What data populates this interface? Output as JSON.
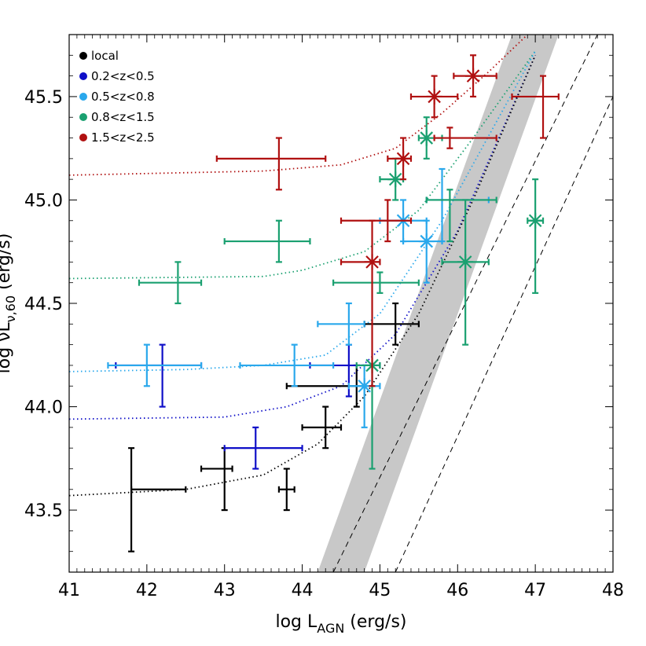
{
  "chart_data": {
    "type": "scatter",
    "xlabel": {
      "main": "log L",
      "sub": "AGN",
      "unit": " (erg/s)"
    },
    "ylabel": {
      "main": "log νL",
      "sub": "ν,60",
      "unit": " (erg/s)"
    },
    "xlim": [
      41,
      48
    ],
    "ylim": [
      43.2,
      45.8
    ],
    "x_ticks": [
      "41",
      "42",
      "43",
      "44",
      "45",
      "46",
      "47",
      "48"
    ],
    "x_tick_values": [
      41,
      42,
      43,
      44,
      45,
      46,
      47,
      48
    ],
    "y_ticks": [
      "43.5",
      "44.0",
      "44.5",
      "45.0",
      "45.5"
    ],
    "y_tick_values": [
      43.5,
      44.0,
      44.5,
      45.0,
      45.5
    ],
    "grid": false,
    "legend_position": "top-left",
    "series": [
      {
        "name": "local",
        "color": "#000000",
        "points": [
          {
            "x": 41.8,
            "y": 43.6,
            "xlo": 41.8,
            "xhi": 42.5,
            "ylo": 43.3,
            "yhi": 43.8,
            "marker": "plus"
          },
          {
            "x": 43.0,
            "y": 43.7,
            "xlo": 42.7,
            "xhi": 43.1,
            "ylo": 43.5,
            "yhi": 43.8,
            "marker": "plus"
          },
          {
            "x": 43.8,
            "y": 43.6,
            "xlo": 43.7,
            "xhi": 43.9,
            "ylo": 43.5,
            "yhi": 43.7,
            "marker": "plus"
          },
          {
            "x": 44.3,
            "y": 43.9,
            "xlo": 44.0,
            "xhi": 44.5,
            "ylo": 43.8,
            "yhi": 44.0,
            "marker": "plus"
          },
          {
            "x": 44.7,
            "y": 44.1,
            "xlo": 43.8,
            "xhi": 44.8,
            "ylo": 44.0,
            "yhi": 44.2,
            "marker": "plus"
          },
          {
            "x": 45.2,
            "y": 44.4,
            "xlo": 44.8,
            "xhi": 45.5,
            "ylo": 44.3,
            "yhi": 44.5,
            "marker": "plus"
          }
        ]
      },
      {
        "name": "0.2<z<0.5",
        "color": "#0f0fc8",
        "points": [
          {
            "x": 42.2,
            "y": 44.2,
            "xlo": 41.6,
            "xhi": 42.7,
            "ylo": 44.0,
            "yhi": 44.3,
            "marker": "plus"
          },
          {
            "x": 43.4,
            "y": 43.8,
            "xlo": 43.0,
            "xhi": 44.0,
            "ylo": 43.7,
            "yhi": 43.9,
            "marker": "plus"
          },
          {
            "x": 44.6,
            "y": 44.2,
            "xlo": 44.1,
            "xhi": 45.0,
            "ylo": 44.05,
            "yhi": 44.3,
            "marker": "plus"
          }
        ]
      },
      {
        "name": "0.5<z<0.8",
        "color": "#2aa8ec",
        "points": [
          {
            "x": 42.0,
            "y": 44.2,
            "xlo": 41.5,
            "xhi": 42.7,
            "ylo": 44.1,
            "yhi": 44.3,
            "marker": "plus"
          },
          {
            "x": 43.9,
            "y": 44.2,
            "xlo": 43.2,
            "xhi": 44.4,
            "ylo": 44.1,
            "yhi": 44.3,
            "marker": "plus"
          },
          {
            "x": 44.6,
            "y": 44.4,
            "xlo": 44.2,
            "xhi": 44.8,
            "ylo": 44.3,
            "yhi": 44.5,
            "marker": "plus"
          },
          {
            "x": 44.8,
            "y": 44.1,
            "xlo": 44.6,
            "xhi": 45.0,
            "ylo": 43.9,
            "yhi": 44.2,
            "marker": "star"
          },
          {
            "x": 45.3,
            "y": 44.9,
            "xlo": 45.0,
            "xhi": 45.6,
            "ylo": 44.8,
            "yhi": 45.0,
            "marker": "star"
          },
          {
            "x": 45.6,
            "y": 44.8,
            "xlo": 45.3,
            "xhi": 45.8,
            "ylo": 44.6,
            "yhi": 44.9,
            "marker": "star"
          },
          {
            "x": 45.8,
            "y": 45.0,
            "xlo": 45.6,
            "xhi": 46.4,
            "ylo": 44.8,
            "yhi": 45.15,
            "marker": "plus"
          }
        ]
      },
      {
        "name": "0.8<z<1.5",
        "color": "#1aa070",
        "points": [
          {
            "x": 42.4,
            "y": 44.6,
            "xlo": 41.9,
            "xhi": 42.7,
            "ylo": 44.5,
            "yhi": 44.7,
            "marker": "plus"
          },
          {
            "x": 43.7,
            "y": 44.8,
            "xlo": 43.0,
            "xhi": 44.1,
            "ylo": 44.7,
            "yhi": 44.9,
            "marker": "plus"
          },
          {
            "x": 45.0,
            "y": 44.6,
            "xlo": 44.4,
            "xhi": 45.5,
            "ylo": 44.55,
            "yhi": 44.65,
            "marker": "plus"
          },
          {
            "x": 44.9,
            "y": 44.2,
            "xlo": 44.7,
            "xhi": 45.0,
            "ylo": 43.7,
            "yhi": 44.2,
            "marker": "star"
          },
          {
            "x": 45.2,
            "y": 45.1,
            "xlo": 45.0,
            "xhi": 45.3,
            "ylo": 45.0,
            "yhi": 45.2,
            "marker": "star"
          },
          {
            "x": 45.6,
            "y": 45.3,
            "xlo": 45.5,
            "xhi": 45.8,
            "ylo": 45.2,
            "yhi": 45.4,
            "marker": "star"
          },
          {
            "x": 45.9,
            "y": 45.0,
            "xlo": 45.6,
            "xhi": 46.5,
            "ylo": 44.8,
            "yhi": 45.05,
            "marker": "plus"
          },
          {
            "x": 46.1,
            "y": 44.7,
            "xlo": 45.8,
            "xhi": 46.4,
            "ylo": 44.3,
            "yhi": 45.0,
            "marker": "star"
          },
          {
            "x": 47.0,
            "y": 44.9,
            "xlo": 46.9,
            "xhi": 47.1,
            "ylo": 44.55,
            "yhi": 45.1,
            "marker": "star"
          }
        ]
      },
      {
        "name": "1.5<z<2.5",
        "color": "#b01010",
        "points": [
          {
            "x": 43.7,
            "y": 45.2,
            "xlo": 42.9,
            "xhi": 44.3,
            "ylo": 45.05,
            "yhi": 45.3,
            "marker": "plus"
          },
          {
            "x": 44.9,
            "y": 44.7,
            "xlo": 44.5,
            "xhi": 45.0,
            "ylo": 44.1,
            "yhi": 44.9,
            "marker": "star"
          },
          {
            "x": 45.1,
            "y": 44.9,
            "xlo": 44.5,
            "xhi": 45.4,
            "ylo": 44.8,
            "yhi": 45.0,
            "marker": "plus"
          },
          {
            "x": 45.3,
            "y": 45.2,
            "xlo": 45.1,
            "xhi": 45.4,
            "ylo": 45.1,
            "yhi": 45.3,
            "marker": "star"
          },
          {
            "x": 45.7,
            "y": 45.5,
            "xlo": 45.4,
            "xhi": 46.0,
            "ylo": 45.4,
            "yhi": 45.6,
            "marker": "star"
          },
          {
            "x": 45.9,
            "y": 45.3,
            "xlo": 45.7,
            "xhi": 46.5,
            "ylo": 45.25,
            "yhi": 45.35,
            "marker": "plus"
          },
          {
            "x": 46.2,
            "y": 45.6,
            "xlo": 45.95,
            "xhi": 46.5,
            "ylo": 45.5,
            "yhi": 45.7,
            "marker": "star"
          },
          {
            "x": 47.1,
            "y": 45.5,
            "xlo": 46.7,
            "xhi": 47.3,
            "ylo": 45.3,
            "yhi": 45.6,
            "marker": "plus"
          }
        ]
      }
    ],
    "model_curves": [
      {
        "series": "1.5<z<2.5",
        "color": "#b01010",
        "points": [
          [
            41,
            45.12
          ],
          [
            43.5,
            45.14
          ],
          [
            44.5,
            45.17
          ],
          [
            45.2,
            45.25
          ],
          [
            45.8,
            45.42
          ],
          [
            46.4,
            45.62
          ],
          [
            46.9,
            45.8
          ]
        ]
      },
      {
        "series": "0.8<z<1.5",
        "color": "#1aa070",
        "points": [
          [
            41,
            44.62
          ],
          [
            43.5,
            44.63
          ],
          [
            44.0,
            44.66
          ],
          [
            44.8,
            44.75
          ],
          [
            45.5,
            44.95
          ],
          [
            46.2,
            45.3
          ],
          [
            47.0,
            45.72
          ]
        ]
      },
      {
        "series": "0.5<z<0.8",
        "color": "#2aa8ec",
        "points": [
          [
            41,
            44.17
          ],
          [
            42.5,
            44.18
          ],
          [
            43.5,
            44.2
          ],
          [
            44.3,
            44.25
          ],
          [
            45.0,
            44.45
          ],
          [
            45.8,
            44.9
          ],
          [
            47.0,
            45.72
          ]
        ]
      },
      {
        "series": "0.2<z<0.5",
        "color": "#0f0fc8",
        "points": [
          [
            41,
            43.94
          ],
          [
            43.0,
            43.95
          ],
          [
            43.8,
            44.0
          ],
          [
            44.5,
            44.1
          ],
          [
            45.2,
            44.35
          ],
          [
            46.0,
            44.85
          ],
          [
            47.0,
            45.7
          ]
        ]
      },
      {
        "series": "local",
        "color": "#000000",
        "points": [
          [
            41,
            43.57
          ],
          [
            42.5,
            43.6
          ],
          [
            43.5,
            43.67
          ],
          [
            44.2,
            43.82
          ],
          [
            44.8,
            44.05
          ],
          [
            45.5,
            44.45
          ],
          [
            46.2,
            45.0
          ],
          [
            47.0,
            45.7
          ]
        ]
      }
    ],
    "reference_band": {
      "color": "#c8c8c8",
      "x_at_ylo": [
        44.2,
        44.8
      ],
      "x_at_yhi": [
        46.7,
        47.3
      ]
    },
    "reference_lines": [
      {
        "style": "dashed",
        "from": [
          44.4,
          43.2
        ],
        "to": [
          47.8,
          45.8
        ]
      },
      {
        "style": "dashed",
        "from": [
          45.2,
          43.2
        ],
        "to": [
          48.0,
          45.5
        ]
      }
    ]
  }
}
